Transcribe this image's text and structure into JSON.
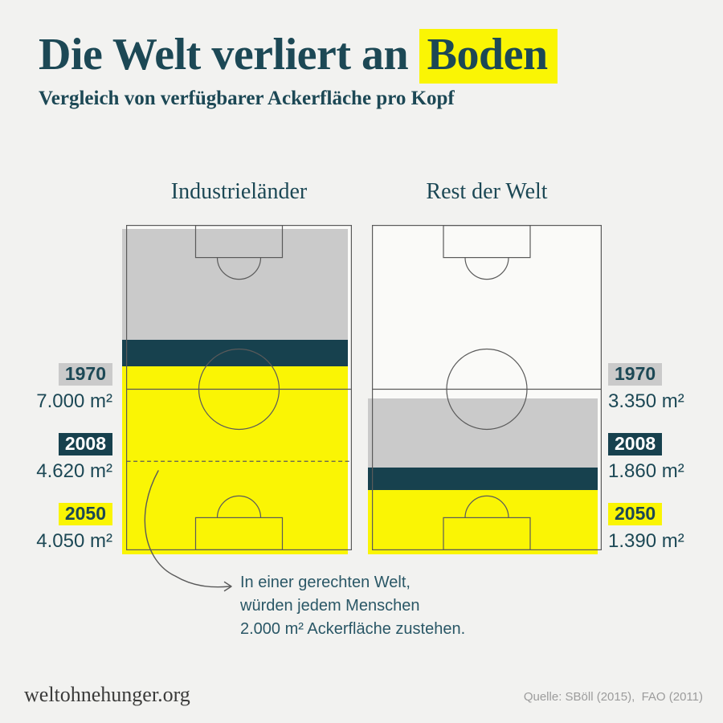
{
  "header": {
    "title_plain": "Die Welt verliert an ",
    "title_highlight": "Boden",
    "subtitle": "Vergleich von verfügbarer Ackerfläche pro Kopf"
  },
  "colors": {
    "bg": "#f2f2f0",
    "teal": "#17414e",
    "teal-text": "#1c4855",
    "yellow": "#faf504",
    "gray-band": "#cacaca",
    "field-bg": "#fafaf8",
    "line": "#5a5a5a",
    "annotation": "#2a5766",
    "brand-text": "#3b3b3a",
    "source-text": "#9c9c9c",
    "white": "#ffffff"
  },
  "chart_data": {
    "type": "area",
    "title": "Die Welt verliert an Boden",
    "subtitle": "Vergleich von verfügbarer Ackerfläche pro Kopf",
    "unit": "m² Ackerfläche pro Kopf",
    "categories": [
      "1970",
      "2008",
      "2050"
    ],
    "series": [
      {
        "name": "Industrieländer",
        "values": [
          7000,
          4620,
          4050
        ],
        "labels": [
          "7.000 m²",
          "4.620 m²",
          "4.050 m²"
        ]
      },
      {
        "name": "Rest der Welt",
        "values": [
          3350,
          1860,
          1390
        ],
        "labels": [
          "3.350 m²",
          "1.860 m²",
          "1.390 m²"
        ]
      }
    ],
    "band_colors": [
      "#cacaca",
      "#17414e",
      "#faf504"
    ],
    "max_value": 7000,
    "reference_line": {
      "value": 2000,
      "style": "dashed"
    },
    "grid": false,
    "legend_position": "side-labels"
  },
  "annotation": {
    "lines": [
      "In einer gerechten Welt,",
      "würden jedem Menschen",
      "2.000 m² Ackerfläche zustehen."
    ]
  },
  "footer": {
    "brand": "weltohnehunger.org",
    "source": "Quelle: SBöll (2015),  FAO (2011)"
  }
}
